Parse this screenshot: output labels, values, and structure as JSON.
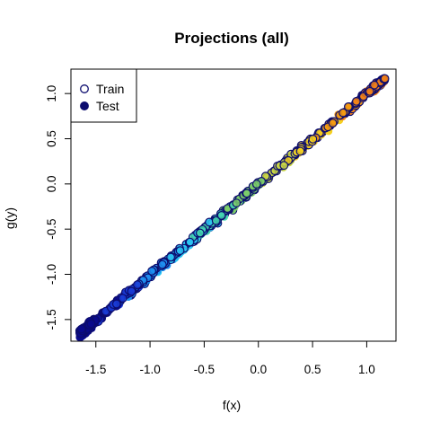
{
  "chart_data": {
    "type": "scatter",
    "title": "Projections (all)",
    "xlabel": "f(x)",
    "ylabel": "g(y)",
    "xlim": [
      -1.73,
      1.27
    ],
    "ylim": [
      -1.74,
      1.27
    ],
    "x_ticks": [
      {
        "value": -1.5,
        "label": "-1.5"
      },
      {
        "value": -1.0,
        "label": "-1.0"
      },
      {
        "value": -0.5,
        "label": "-0.5"
      },
      {
        "value": 0.0,
        "label": "0.0"
      },
      {
        "value": 0.5,
        "label": "0.5"
      },
      {
        "value": 1.0,
        "label": "1.0"
      }
    ],
    "y_ticks": [
      {
        "value": -1.5,
        "label": "-1.5"
      },
      {
        "value": -1.0,
        "label": "-1.0"
      },
      {
        "value": -0.5,
        "label": "-0.5"
      },
      {
        "value": 0.0,
        "label": "0.0"
      },
      {
        "value": 0.5,
        "label": "0.5"
      },
      {
        "value": 1.0,
        "label": "1.0"
      }
    ],
    "grid": false,
    "legend_position": "top-left",
    "point_colormap": [
      "#0a0a8c",
      "#1a3cd6",
      "#1f8ff0",
      "#2bc6f2",
      "#44d6b0",
      "#7ccf6a",
      "#c9d645",
      "#f5d020",
      "#f59a10",
      "#f0801a",
      "#ffff40"
    ],
    "series": [
      {
        "name": "Train",
        "marker": "open-circle",
        "edge_color": "#0c0c6e",
        "x_range": [
          -1.65,
          1.17
        ],
        "approx_count": 340
      },
      {
        "name": "Test",
        "marker": "filled-circle",
        "edge_color": "#0c0c6e",
        "x_range": [
          -1.65,
          1.17
        ],
        "approx_count": 380
      }
    ]
  }
}
